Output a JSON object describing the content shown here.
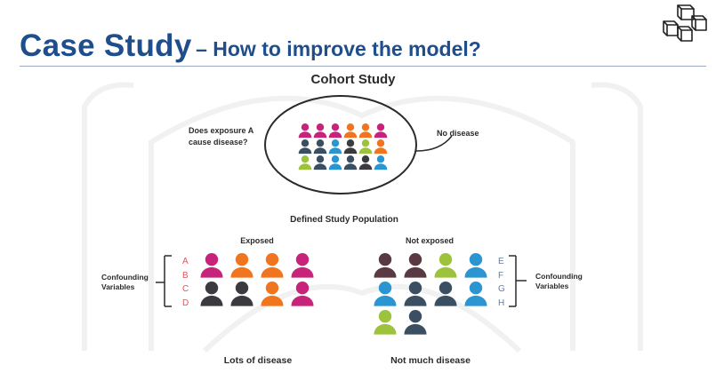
{
  "header": {
    "title": "Case Study",
    "subtitle": "– How to improve the model?"
  },
  "diagram": {
    "cohort_title": "Cohort Study",
    "question": [
      "Does exposure A",
      "cause disease?"
    ],
    "no_disease_label": "No disease",
    "population_label": "Defined Study Population",
    "exposed_label": "Exposed",
    "not_exposed_label": "Not exposed",
    "confounding_left": [
      "Confounding",
      "Variables"
    ],
    "confounding_right": [
      "Confounding",
      "Variables"
    ],
    "letters_left": [
      "A",
      "B",
      "C",
      "D"
    ],
    "letters_right": [
      "E",
      "F",
      "G",
      "H"
    ],
    "outcome_left": "Lots of disease",
    "outcome_right": "Not much disease"
  },
  "colors": {
    "title": "#1f4e8c",
    "magenta": "#c8237a",
    "orange": "#f0751e",
    "dark": "#3a3a3f",
    "green": "#9dc23c",
    "blue": "#2b95d2",
    "navy": "#3b4f63",
    "plum": "#5a3a42",
    "letters_left": "#e0555d",
    "letters_right": "#5a7fa8"
  },
  "people": {
    "cohort": [
      [
        "magenta",
        "magenta",
        "magenta",
        "orange",
        "orange",
        "magenta"
      ],
      [
        "navy",
        "navy",
        "blue",
        "dark",
        "green",
        "orange"
      ],
      [
        "green",
        "navy",
        "blue",
        "navy",
        "dark",
        "blue"
      ]
    ],
    "exposed": [
      [
        "magenta",
        "orange",
        "orange",
        "magenta"
      ],
      [
        "dark",
        "dark",
        "orange",
        "magenta"
      ]
    ],
    "not_exposed": [
      [
        "plum",
        "plum",
        "green",
        "blue"
      ],
      [
        "blue",
        "navy",
        "navy",
        "blue"
      ],
      [
        "green",
        "navy"
      ]
    ]
  }
}
